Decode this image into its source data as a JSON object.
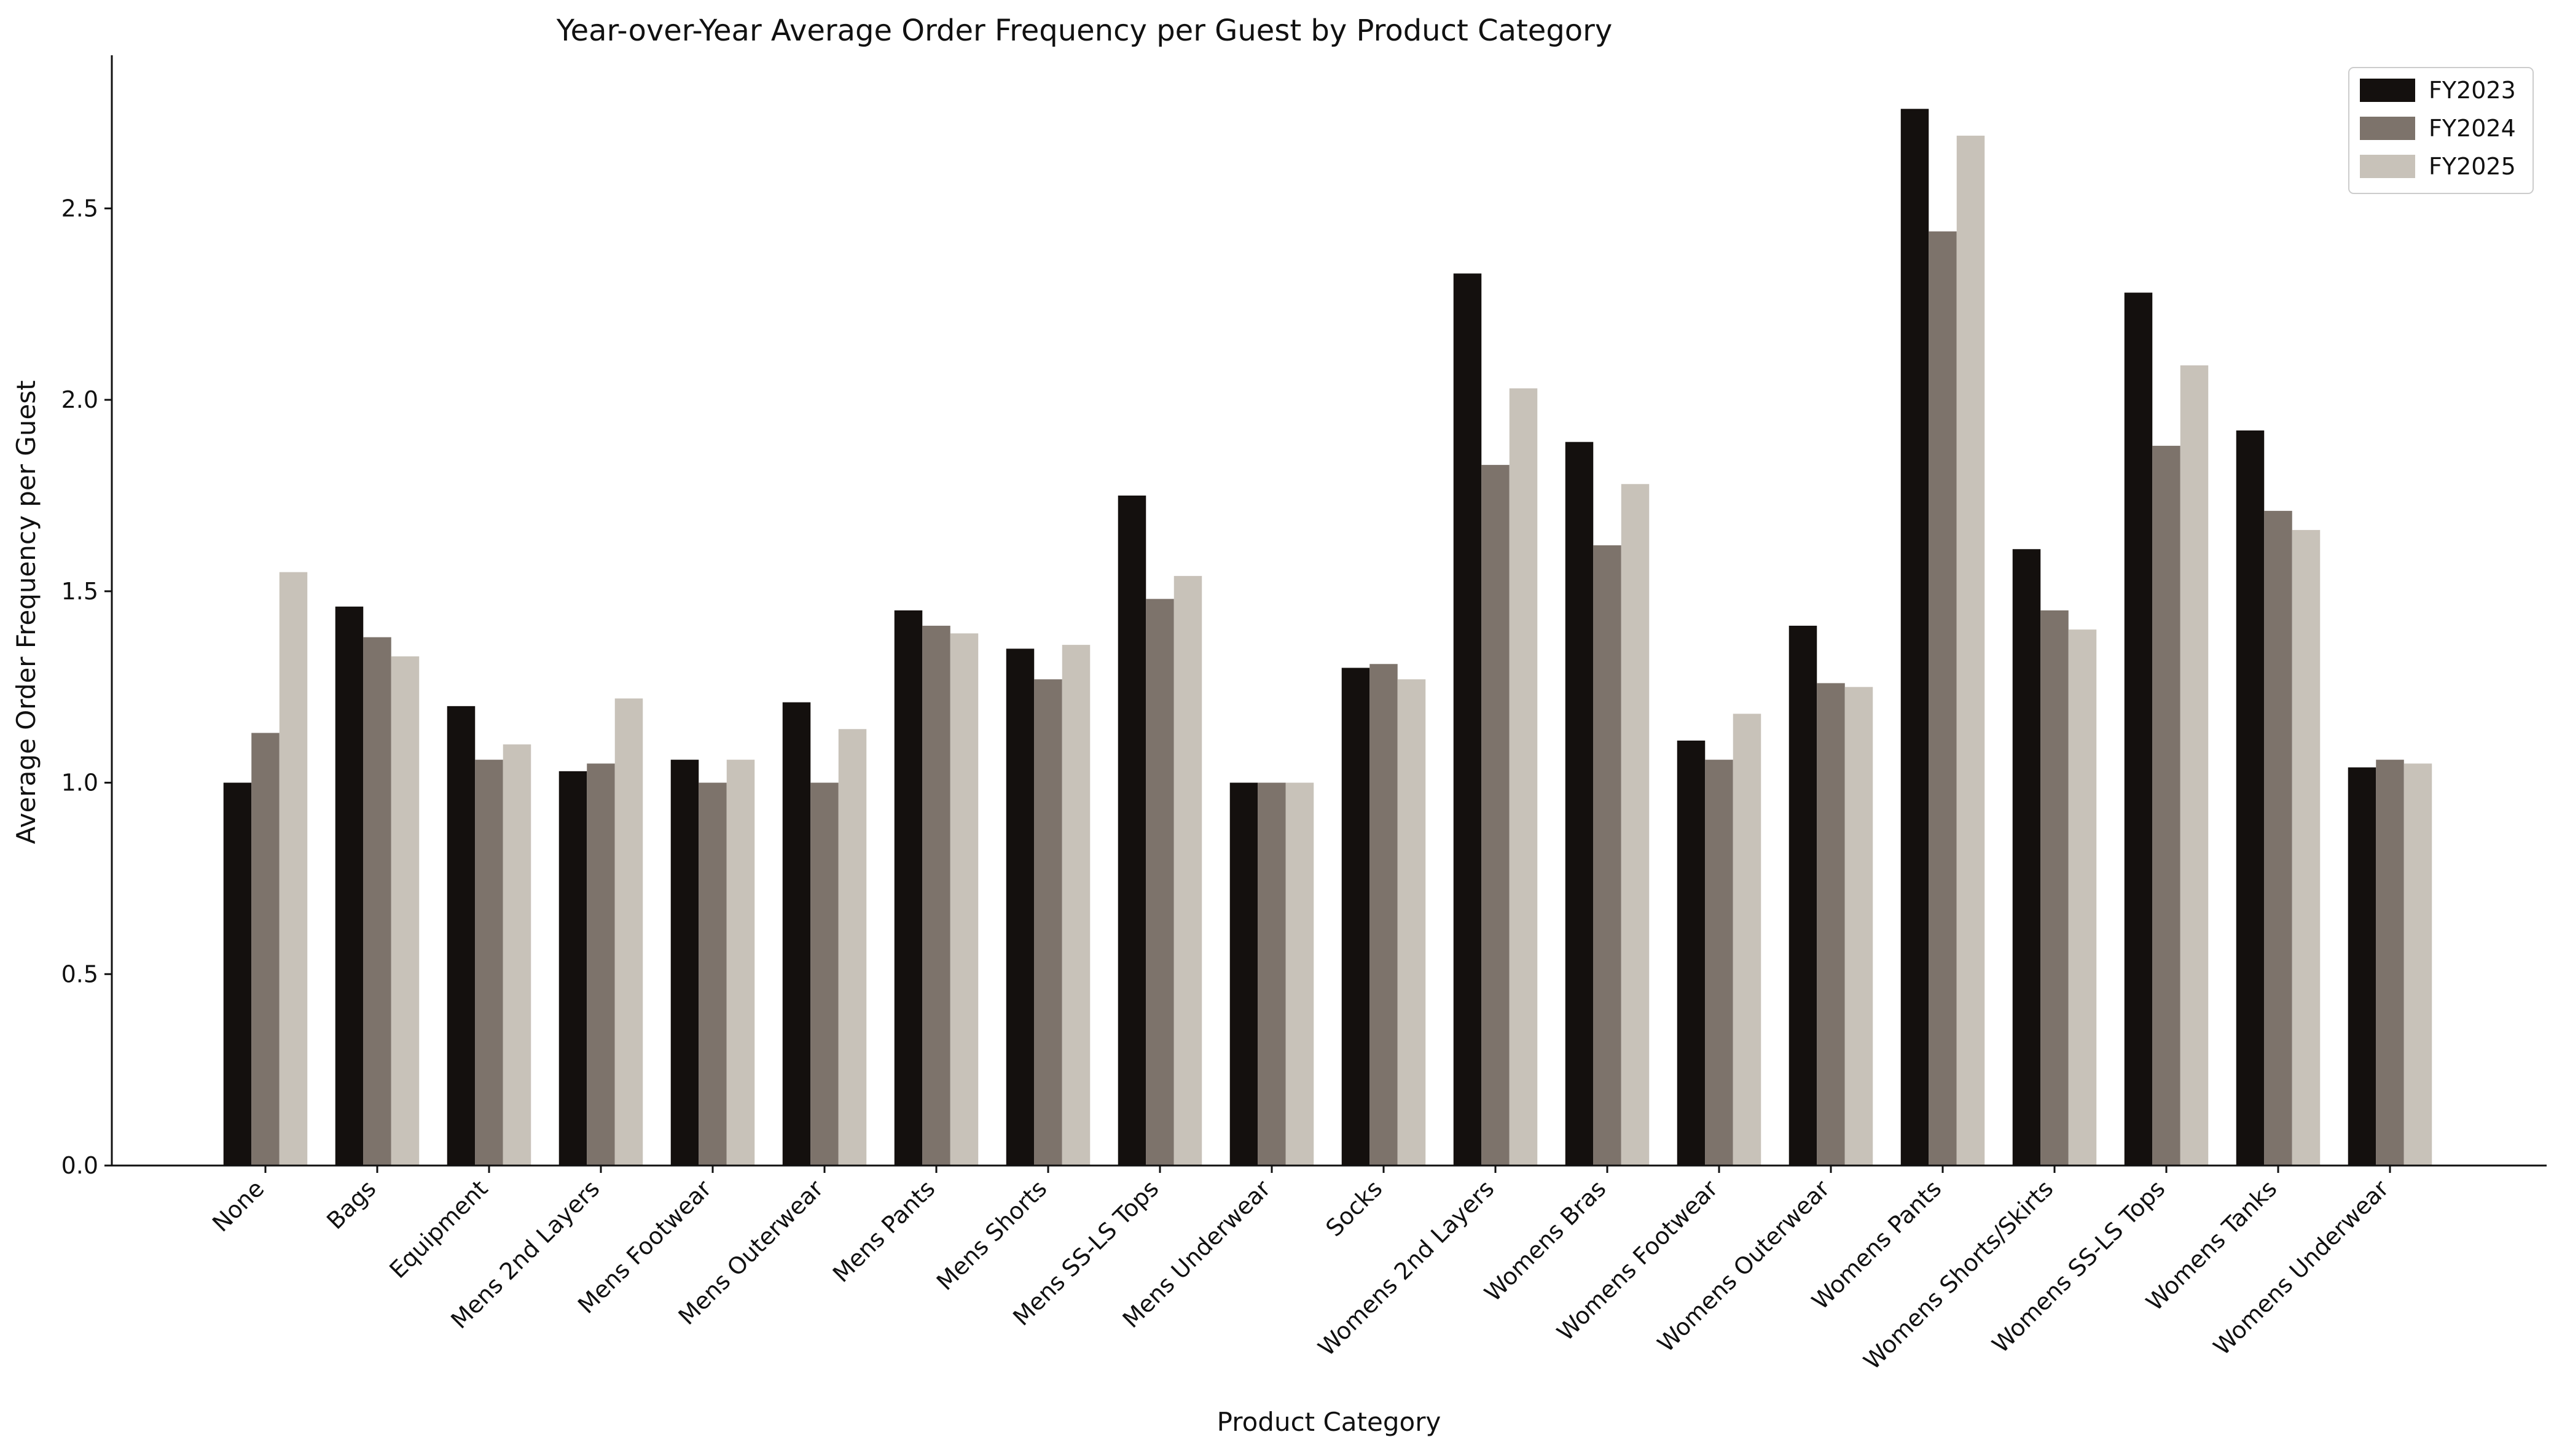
{
  "chart_data": {
    "type": "bar",
    "title": "Year-over-Year Average Order Frequency per Guest by Product Category",
    "xlabel": "Product Category",
    "ylabel": "Average Order Frequency per Guest",
    "ylim": [
      0,
      2.9
    ],
    "yticks": [
      "0.0",
      "0.5",
      "1.0",
      "1.5",
      "2.0",
      "2.5"
    ],
    "grid": false,
    "legend_position": "top-right",
    "categories": [
      "None",
      "Bags",
      "Equipment",
      "Mens 2nd Layers",
      "Mens Footwear",
      "Mens Outerwear",
      "Mens Pants",
      "Mens Shorts",
      "Mens SS-LS Tops",
      "Mens Underwear",
      "Socks",
      "Womens 2nd Layers",
      "Womens Bras",
      "Womens Footwear",
      "Womens Outerwear",
      "Womens Pants",
      "Womens Shorts/Skirts",
      "Womens SS-LS Tops",
      "Womens Tanks",
      "Womens Underwear"
    ],
    "series": [
      {
        "name": "FY2023",
        "color": "#14100e",
        "values": [
          1.0,
          1.46,
          1.2,
          1.03,
          1.06,
          1.21,
          1.45,
          1.35,
          1.75,
          1.0,
          1.3,
          2.33,
          1.89,
          1.11,
          1.41,
          2.76,
          1.61,
          2.28,
          1.92,
          1.04
        ]
      },
      {
        "name": "FY2024",
        "color": "#7d736b",
        "values": [
          1.13,
          1.38,
          1.06,
          1.05,
          1.0,
          1.0,
          1.41,
          1.27,
          1.48,
          1.0,
          1.31,
          1.83,
          1.62,
          1.06,
          1.26,
          2.44,
          1.45,
          1.88,
          1.71,
          1.06
        ]
      },
      {
        "name": "FY2025",
        "color": "#c8c2b9",
        "values": [
          1.55,
          1.33,
          1.1,
          1.22,
          1.06,
          1.14,
          1.39,
          1.36,
          1.54,
          1.0,
          1.27,
          2.03,
          1.78,
          1.18,
          1.25,
          2.69,
          1.4,
          2.09,
          1.66,
          1.05
        ]
      }
    ]
  }
}
